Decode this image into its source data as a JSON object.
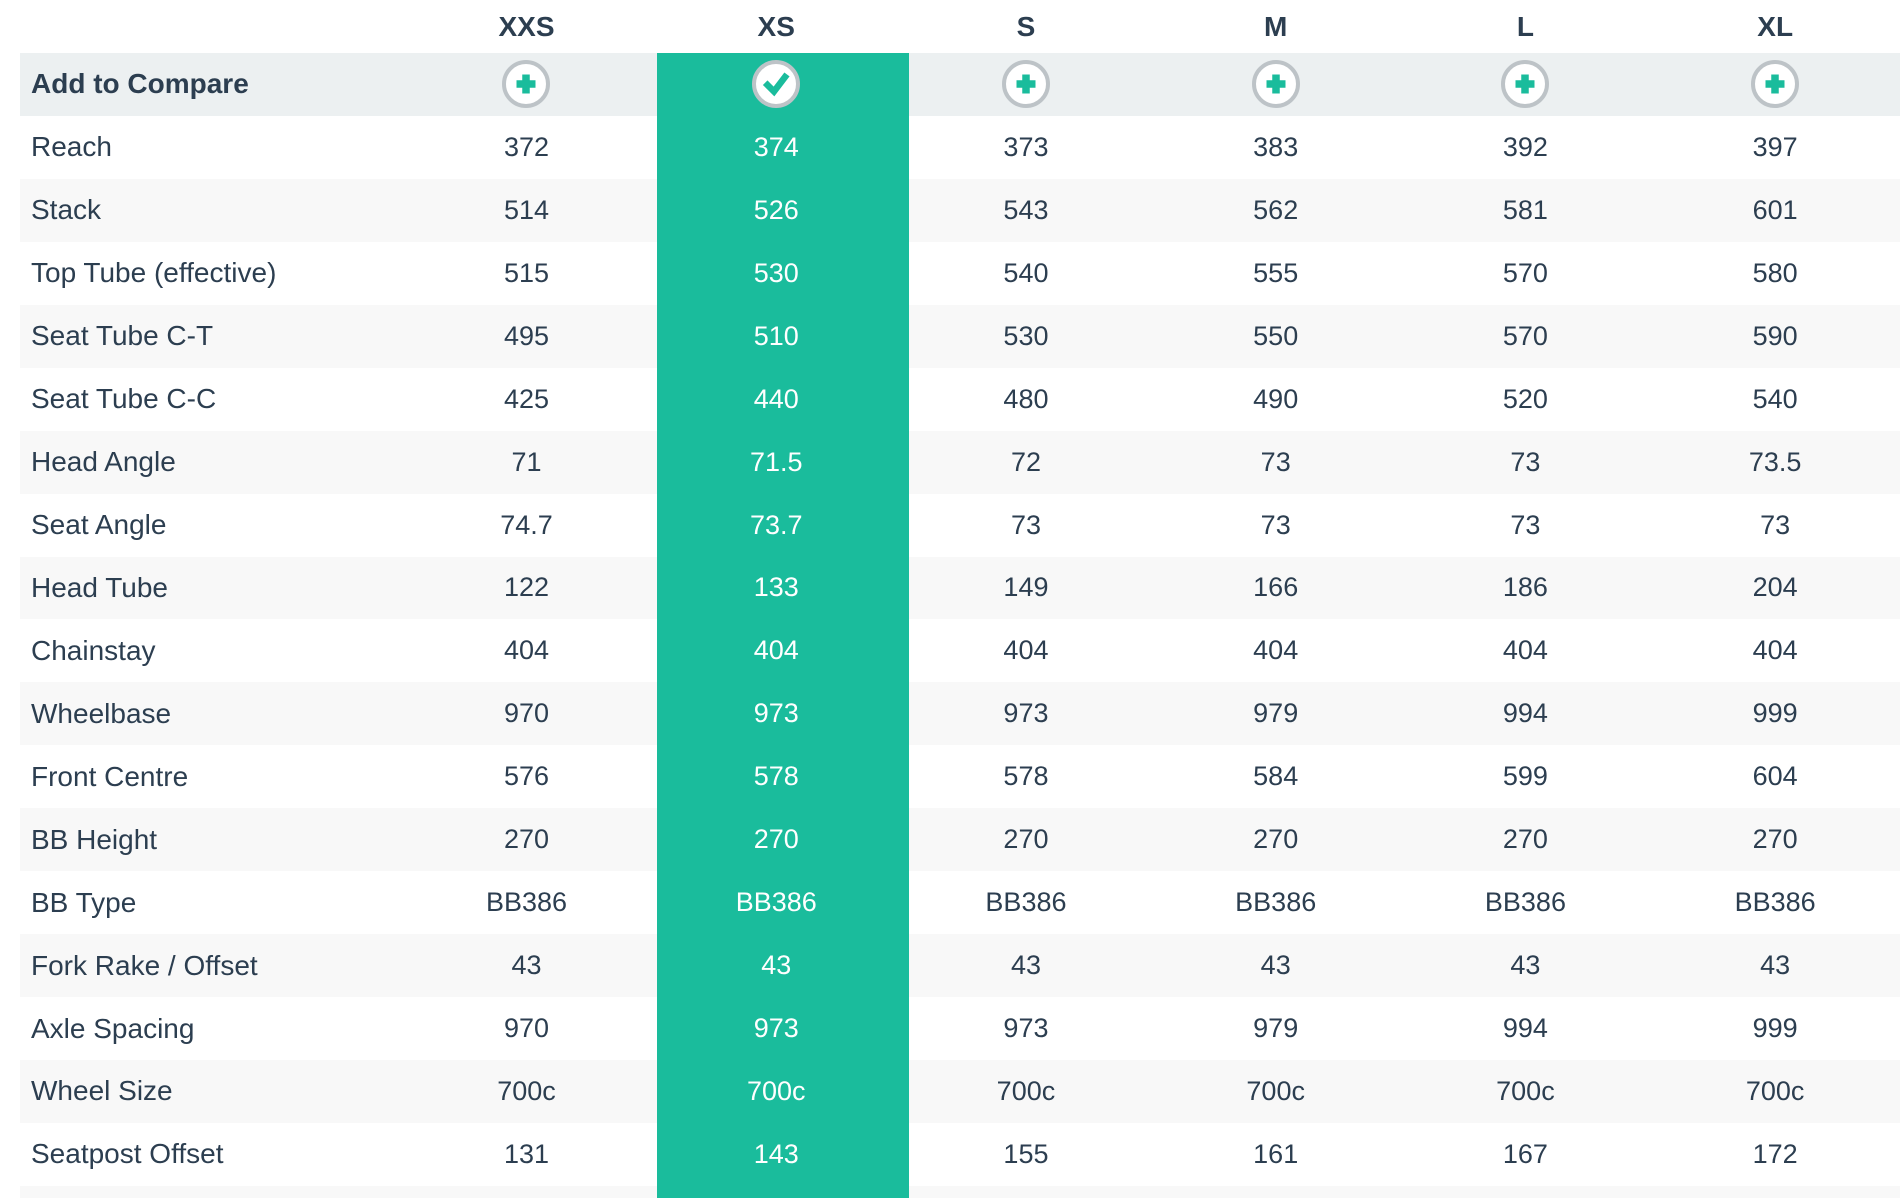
{
  "table": {
    "sizes": [
      "XXS",
      "XS",
      "S",
      "M",
      "L",
      "XL"
    ],
    "selected_size": "XS",
    "selected_index": 1,
    "compare_row": {
      "label": "Add to Compare",
      "plus_icon": "plus-icon",
      "check_icon": "check-icon"
    },
    "rows": [
      {
        "label": "Reach",
        "values": [
          "372",
          "374",
          "373",
          "383",
          "392",
          "397"
        ]
      },
      {
        "label": "Stack",
        "values": [
          "514",
          "526",
          "543",
          "562",
          "581",
          "601"
        ]
      },
      {
        "label": "Top Tube (effective)",
        "values": [
          "515",
          "530",
          "540",
          "555",
          "570",
          "580"
        ]
      },
      {
        "label": "Seat Tube C-T",
        "values": [
          "495",
          "510",
          "530",
          "550",
          "570",
          "590"
        ]
      },
      {
        "label": "Seat Tube C-C",
        "values": [
          "425",
          "440",
          "480",
          "490",
          "520",
          "540"
        ]
      },
      {
        "label": "Head Angle",
        "values": [
          "71",
          "71.5",
          "72",
          "73",
          "73",
          "73.5"
        ]
      },
      {
        "label": "Seat Angle",
        "values": [
          "74.7",
          "73.7",
          "73",
          "73",
          "73",
          "73"
        ]
      },
      {
        "label": "Head Tube",
        "values": [
          "122",
          "133",
          "149",
          "166",
          "186",
          "204"
        ]
      },
      {
        "label": "Chainstay",
        "values": [
          "404",
          "404",
          "404",
          "404",
          "404",
          "404"
        ]
      },
      {
        "label": "Wheelbase",
        "values": [
          "970",
          "973",
          "973",
          "979",
          "994",
          "999"
        ]
      },
      {
        "label": "Front Centre",
        "values": [
          "576",
          "578",
          "578",
          "584",
          "599",
          "604"
        ]
      },
      {
        "label": "BB Height",
        "values": [
          "270",
          "270",
          "270",
          "270",
          "270",
          "270"
        ]
      },
      {
        "label": "BB Type",
        "values": [
          "BB386",
          "BB386",
          "BB386",
          "BB386",
          "BB386",
          "BB386"
        ]
      },
      {
        "label": "Fork Rake / Offset",
        "values": [
          "43",
          "43",
          "43",
          "43",
          "43",
          "43"
        ]
      },
      {
        "label": "Axle Spacing",
        "values": [
          "970",
          "973",
          "973",
          "979",
          "994",
          "999"
        ]
      },
      {
        "label": "Wheel Size",
        "values": [
          "700c",
          "700c",
          "700c",
          "700c",
          "700c",
          "700c"
        ]
      },
      {
        "label": "Seatpost Offset",
        "values": [
          "131",
          "143",
          "155",
          "161",
          "167",
          "172"
        ]
      }
    ]
  },
  "colors": {
    "accent_teal": "#1ABC9C",
    "text_dark": "#2C3E50",
    "compare_row_bg": "#ECF0F1",
    "stripe_bg": "#F8F8F8",
    "icon_ring": "#BDC3C7",
    "selected_text": "#FFFFFF"
  }
}
